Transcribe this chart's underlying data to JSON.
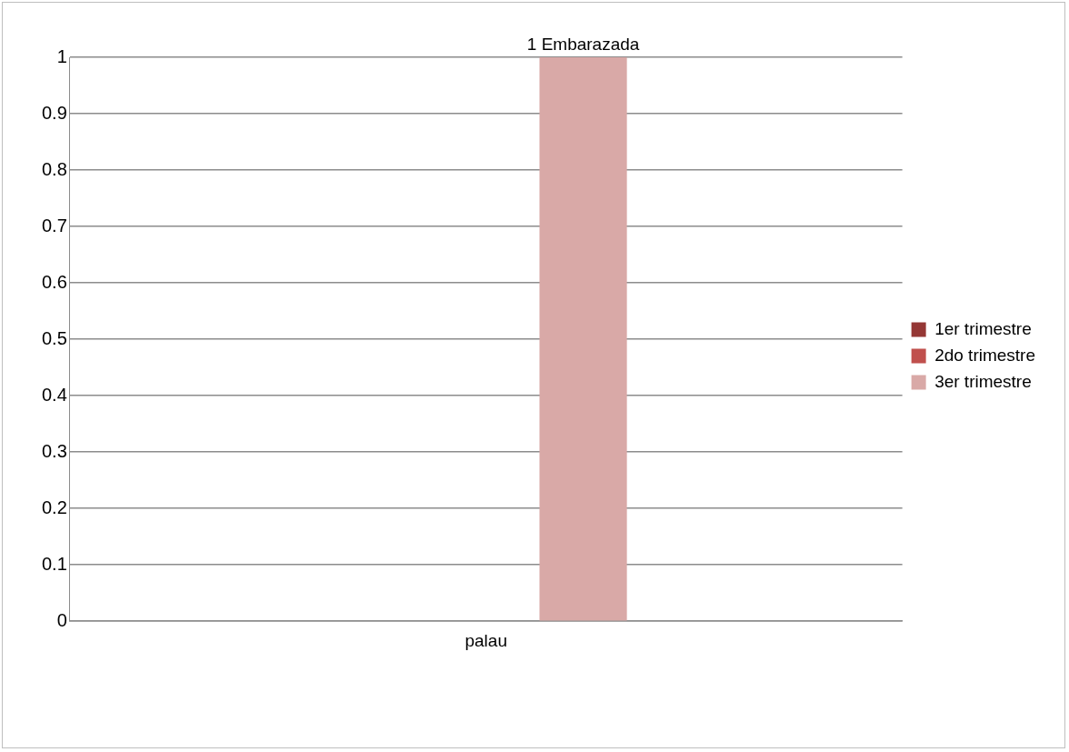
{
  "chart_data": {
    "type": "bar",
    "categories": [
      "palau"
    ],
    "series": [
      {
        "name": "1er trimestre",
        "color": "#953735",
        "values": [
          0
        ]
      },
      {
        "name": "2do trimestre",
        "color": "#c0504d",
        "values": [
          0
        ]
      },
      {
        "name": "3er trimestre",
        "color": "#d9a9a7",
        "values": [
          1
        ],
        "value_labels": [
          "1 Embarazada"
        ]
      }
    ],
    "ylim": [
      0,
      1
    ],
    "yticks": [
      0,
      0.1,
      0.2,
      0.3,
      0.4,
      0.5,
      0.6,
      0.7,
      0.8,
      0.9,
      1
    ],
    "grid": "y",
    "legend": "right"
  }
}
